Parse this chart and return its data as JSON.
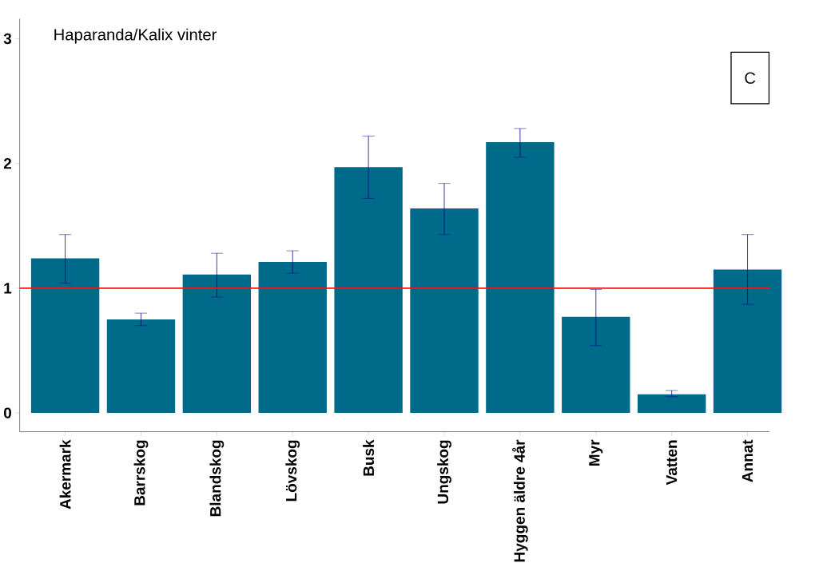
{
  "chart_data": {
    "type": "bar",
    "title": "Haparanda/Kalix vinter",
    "categories": [
      "Akermark",
      "Barrskog",
      "Blandskog",
      "Lövskog",
      "Busk",
      "Ungskog",
      "Hyggen äldre 4år",
      "Myr",
      "Vatten",
      "Annat"
    ],
    "values": [
      1.24,
      0.75,
      1.11,
      1.21,
      1.97,
      1.64,
      2.17,
      0.77,
      0.15,
      1.15
    ],
    "errors": [
      [
        1.04,
        1.43
      ],
      [
        0.7,
        0.8
      ],
      [
        0.93,
        1.28
      ],
      [
        1.12,
        1.3
      ],
      [
        1.72,
        2.22
      ],
      [
        1.43,
        1.84
      ],
      [
        2.05,
        2.28
      ],
      [
        0.54,
        0.99
      ],
      [
        0.13,
        0.18
      ],
      [
        0.87,
        1.43
      ]
    ],
    "color": "#006a8a",
    "ylim": [
      -0.15,
      3.16
    ],
    "yticks": [
      0,
      1,
      2,
      3
    ],
    "ref_lines": [
      {
        "axis": "y",
        "value": 1,
        "color": "#e8171f"
      }
    ],
    "annotations": [
      "C"
    ]
  }
}
